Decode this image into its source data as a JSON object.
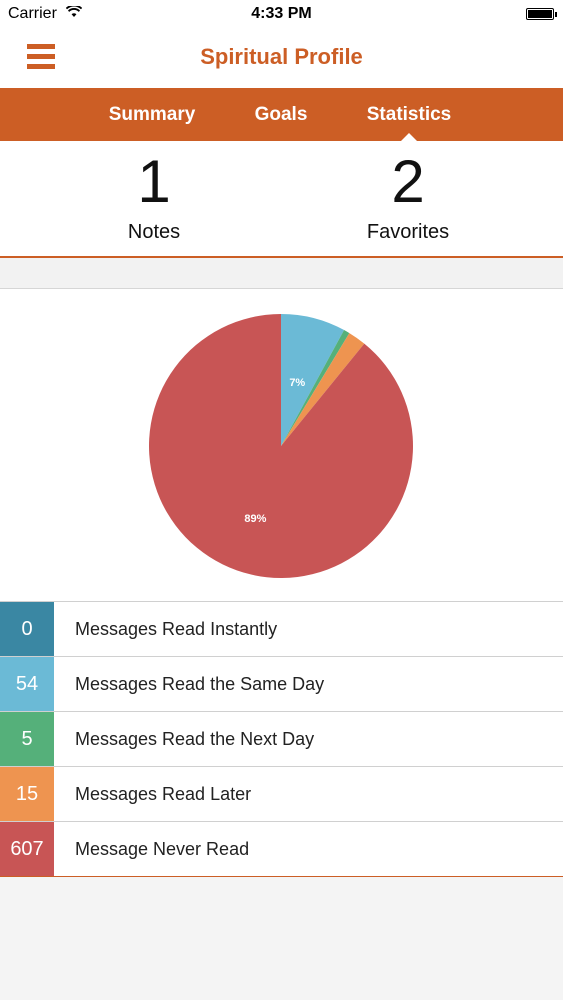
{
  "status_bar": {
    "carrier": "Carrier",
    "time": "4:33 PM",
    "wifi_icon": "wifi-icon",
    "battery_icon": "battery-icon"
  },
  "nav": {
    "title": "Spiritual Profile",
    "menu_icon": "hamburger-menu-icon"
  },
  "tabs": [
    {
      "label": "Summary",
      "active": false
    },
    {
      "label": "Goals",
      "active": false
    },
    {
      "label": "Statistics",
      "active": true
    }
  ],
  "counts": [
    {
      "value": "1",
      "label": "Notes"
    },
    {
      "value": "2",
      "label": "Favorites"
    }
  ],
  "colors": {
    "accent": "#cc5e25"
  },
  "chart_data": {
    "type": "pie",
    "series": [
      {
        "name": "Messages Read Instantly",
        "value": 0,
        "color": "#3a87a3"
      },
      {
        "name": "Messages Read the Same Day",
        "value": 54,
        "color": "#6bbad6"
      },
      {
        "name": "Messages Read the Next Day",
        "value": 5,
        "color": "#55b07a"
      },
      {
        "name": "Messages Read Later",
        "value": 15,
        "color": "#ee9450"
      },
      {
        "name": "Message Never Read",
        "value": 607,
        "color": "#c85555"
      }
    ],
    "data_labels": [
      {
        "series": "Messages Read the Same Day",
        "text": "7%"
      },
      {
        "series": "Message Never Read",
        "text": "89%"
      }
    ]
  },
  "legend": [
    {
      "count": "0",
      "label": "Messages Read Instantly",
      "color": "#3a87a3"
    },
    {
      "count": "54",
      "label": "Messages Read the Same Day",
      "color": "#6bbad6"
    },
    {
      "count": "5",
      "label": "Messages Read the Next Day",
      "color": "#55b07a"
    },
    {
      "count": "15",
      "label": "Messages Read Later",
      "color": "#ee9450"
    },
    {
      "count": "607",
      "label": "Message Never Read",
      "color": "#c85555"
    }
  ]
}
